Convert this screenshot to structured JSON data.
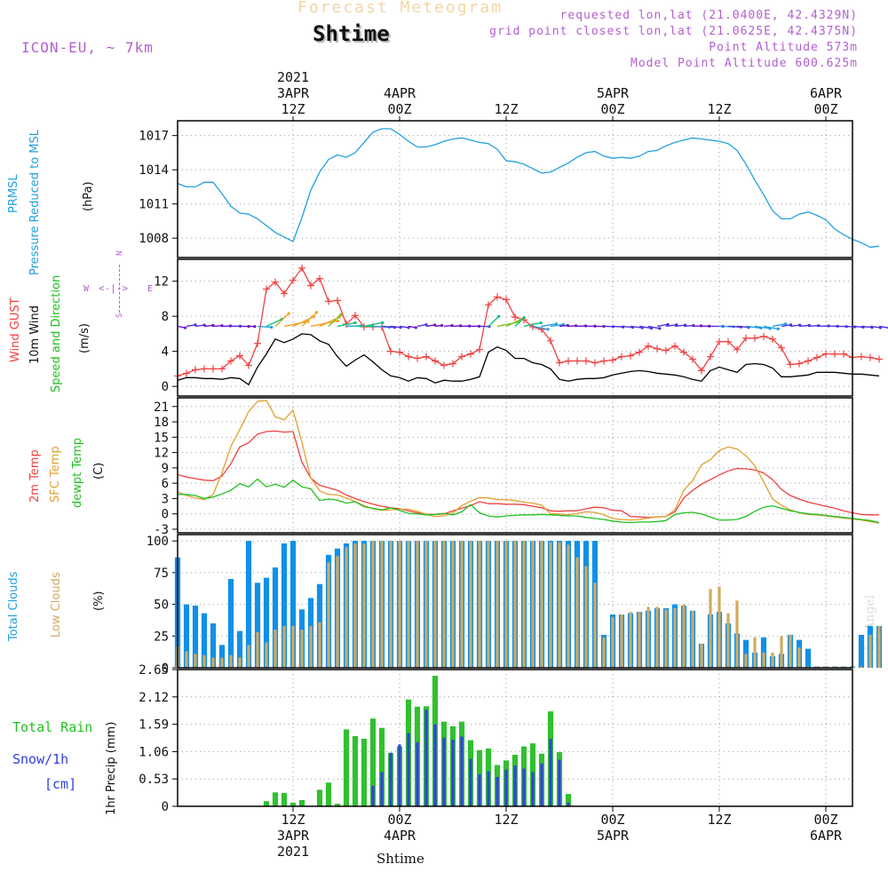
{
  "header": {
    "title": "Forecast Meteogram",
    "place": "Shtime",
    "model": "ICON-EU, ~ 7km",
    "requested": "requested lon,lat (21.0400E, 42.4329N)",
    "gridpoint": "grid point closest lon,lat (21.0625E, 42.4375N)",
    "point_alt": "Point Altitude 573m",
    "model_alt": "Model Point Altitude 600.625m"
  },
  "time_axis": {
    "top_ticks": [
      {
        "x": 13,
        "lines": [
          "2021",
          "3APR",
          "12Z"
        ]
      },
      {
        "x": 25,
        "lines": [
          "4APR",
          "00Z"
        ]
      },
      {
        "x": 37,
        "lines": [
          "12Z"
        ]
      },
      {
        "x": 49,
        "lines": [
          "5APR",
          "00Z"
        ]
      },
      {
        "x": 61,
        "lines": [
          "12Z"
        ]
      },
      {
        "x": 73,
        "lines": [
          "6APR",
          "00Z"
        ]
      }
    ],
    "bottom_ticks": [
      {
        "x": 13,
        "lines": [
          "12Z",
          "3APR",
          "2021"
        ]
      },
      {
        "x": 25,
        "lines": [
          "00Z",
          "4APR"
        ]
      },
      {
        "x": 37,
        "lines": [
          "12Z"
        ]
      },
      {
        "x": 49,
        "lines": [
          "00Z",
          "5APR"
        ]
      },
      {
        "x": 61,
        "lines": [
          "12Z"
        ]
      },
      {
        "x": 73,
        "lines": [
          "00Z",
          "6APR"
        ]
      }
    ],
    "xlabel": "Shtime"
  },
  "labels": {
    "prmsl": "PRMSL",
    "prmsl_sub": "Pressure Reduced to MSL",
    "hpa": "(hPa)",
    "gust": "Wind GUST",
    "wind10": "10m Wind",
    "speeddir": "Speed and Direction",
    "ms": "(m/s)",
    "t2m": "2m Temp",
    "sfc": "SFC Temp",
    "dew": "dewpt Temp",
    "c": "(C)",
    "totcl": "Total Clouds",
    "lowcl": "Low Clouds",
    "pct": "(%)",
    "rain": "Total  Rain",
    "snow": "Snow/1h",
    "cm": "[cm]",
    "precip": "1hr Precip (mm)",
    "compass_n": "N",
    "compass_s": "S",
    "compass_w": "W",
    "compass_e": "E",
    "by": "by Angel"
  },
  "colors": {
    "pressure": "#1fa0e0",
    "gust": "#f04040",
    "wind": "#000000",
    "t2m": "#f04040",
    "sfc": "#e0a030",
    "dew": "#20c020",
    "total_cloud": "#1090e8",
    "low_cloud": "#d0aa60",
    "rain": "#30c030",
    "snow": "#3040e0",
    "label_purple": "#b35fd0"
  },
  "chart_data": [
    {
      "type": "line",
      "title": "PRMSL",
      "ylabel": "(hPa)",
      "ylim": [
        1006.3,
        1018.3
      ],
      "yticks": [
        1008,
        1011,
        1014,
        1017
      ],
      "x_range": [
        0,
        76
      ],
      "series": [
        {
          "name": "PRMSL",
          "values": [
            1012.8,
            1012.5,
            1012.5,
            1012.9,
            1012.9,
            1011.9,
            1010.8,
            1010.2,
            1010.1,
            1009.7,
            1009.1,
            1008.5,
            1008.1,
            1007.7,
            1009.8,
            1012.2,
            1013.8,
            1014.9,
            1015.3,
            1015.1,
            1015.5,
            1016.4,
            1017.3,
            1017.6,
            1017.6,
            1017.1,
            1016.5,
            1016.0,
            1016.0,
            1016.2,
            1016.5,
            1016.7,
            1016.8,
            1016.6,
            1016.4,
            1016.3,
            1015.8,
            1014.8,
            1014.7,
            1014.5,
            1014.1,
            1013.7,
            1013.8,
            1014.2,
            1014.6,
            1015.1,
            1015.5,
            1015.6,
            1015.2,
            1015.0,
            1015.1,
            1015.0,
            1015.2,
            1015.6,
            1015.7,
            1016.1,
            1016.4,
            1016.6,
            1016.8,
            1016.7,
            1016.6,
            1016.5,
            1016.3,
            1015.7,
            1014.5,
            1013.1,
            1011.8,
            1010.4,
            1009.7,
            1009.7,
            1010.1,
            1010.3,
            1010.0,
            1009.6,
            1008.8,
            1008.3,
            1007.9,
            1007.6,
            1007.2,
            1007.3
          ]
        }
      ]
    },
    {
      "type": "line",
      "title": "Wind",
      "ylabel": "(m/s)",
      "ylim": [
        -1.1,
        14.5
      ],
      "yticks": [
        0,
        4,
        8,
        12
      ],
      "x_range": [
        0,
        76
      ],
      "series": [
        {
          "name": "Wind GUST",
          "values": [
            1.2,
            1.5,
            1.9,
            2.0,
            2.0,
            2.0,
            2.9,
            3.5,
            2.4,
            4.9,
            11.1,
            11.9,
            10.6,
            12.1,
            13.5,
            11.5,
            12.3,
            9.7,
            9.8,
            7.1,
            8.1,
            6.8,
            6.8,
            6.8,
            4.0,
            3.9,
            3.4,
            3.2,
            3.4,
            2.9,
            2.4,
            2.6,
            3.4,
            3.7,
            4.2,
            9.3,
            10.2,
            9.9,
            7.9,
            7.6,
            6.8,
            6.5,
            5.2,
            2.7,
            2.9,
            2.9,
            2.9,
            2.7,
            2.9,
            3.0,
            3.4,
            3.5,
            3.9,
            4.6,
            4.3,
            4.1,
            4.6,
            3.9,
            3.1,
            1.8,
            3.4,
            5.1,
            5.1,
            4.2,
            5.5,
            5.5,
            5.7,
            5.4,
            4.4,
            2.5,
            2.6,
            2.9,
            3.3,
            3.7,
            3.7,
            3.7,
            3.3,
            3.4,
            3.3,
            3.1
          ]
        },
        {
          "name": "10m Wind",
          "values": [
            0.7,
            1.0,
            1.0,
            0.9,
            0.9,
            0.8,
            1.0,
            0.9,
            0.2,
            2.2,
            3.7,
            5.4,
            5.0,
            5.4,
            6.0,
            5.9,
            5.2,
            4.8,
            3.4,
            2.3,
            3.0,
            3.6,
            2.8,
            1.9,
            1.2,
            1.0,
            0.6,
            1.0,
            0.9,
            0.4,
            0.7,
            0.6,
            0.6,
            0.8,
            1.1,
            3.9,
            4.5,
            4.1,
            3.2,
            3.2,
            2.7,
            2.5,
            2.0,
            0.8,
            0.6,
            0.8,
            0.9,
            0.9,
            1.0,
            1.3,
            1.5,
            1.7,
            1.8,
            1.7,
            1.5,
            1.4,
            1.3,
            1.1,
            0.8,
            0.6,
            1.8,
            2.2,
            1.9,
            1.6,
            2.5,
            2.6,
            2.5,
            2.1,
            1.1,
            1.1,
            1.2,
            1.3,
            1.6,
            1.6,
            1.6,
            1.5,
            1.4,
            1.4,
            1.3,
            1.2
          ]
        }
      ]
    },
    {
      "type": "line",
      "title": "Temperature",
      "ylabel": "(C)",
      "ylim": [
        -3.7,
        22.7
      ],
      "yticks": [
        -3,
        0,
        3,
        6,
        9,
        12,
        15,
        18,
        21
      ],
      "x_range": [
        0,
        76
      ],
      "series": [
        {
          "name": "2m Temp",
          "values": [
            7.7,
            7.2,
            6.9,
            6.6,
            6.5,
            7.4,
            9.8,
            13.1,
            13.9,
            15.6,
            16.1,
            16.2,
            16.0,
            16.1,
            10.1,
            7.0,
            5.6,
            5.1,
            4.6,
            3.7,
            3.0,
            2.4,
            1.9,
            1.5,
            1.2,
            1.0,
            0.6,
            0.2,
            -0.1,
            -0.1,
            0.0,
            0.6,
            1.1,
            1.6,
            2.4,
            2.0,
            2.0,
            1.9,
            1.9,
            1.8,
            1.5,
            1.2,
            0.6,
            0.5,
            0.6,
            0.6,
            1.0,
            1.3,
            1.2,
            0.7,
            0.6,
            -0.5,
            -0.6,
            -0.7,
            -0.6,
            -0.5,
            0.4,
            3.1,
            4.6,
            5.8,
            6.7,
            7.6,
            8.4,
            8.9,
            8.8,
            8.6,
            8.0,
            6.7,
            4.8,
            3.6,
            2.9,
            2.3,
            1.9,
            1.5,
            1.1,
            0.6,
            0.2,
            -0.1,
            -0.2,
            -0.2
          ]
        },
        {
          "name": "SFC Temp",
          "values": [
            4.3,
            3.6,
            3.1,
            2.8,
            3.8,
            8.0,
            13.2,
            16.5,
            20.0,
            22.0,
            22.2,
            19.0,
            18.4,
            20.3,
            14.0,
            7.0,
            4.5,
            3.8,
            3.7,
            3.1,
            2.4,
            1.6,
            1.0,
            0.7,
            0.8,
            0.9,
            0.9,
            0.5,
            -0.1,
            -0.5,
            -0.4,
            0.2,
            1.6,
            2.5,
            3.2,
            3.1,
            2.8,
            2.8,
            2.6,
            2.3,
            2.1,
            1.7,
            0.0,
            0.0,
            -0.2,
            0.1,
            0.4,
            0.3,
            -0.2,
            -0.9,
            -1.1,
            -1.2,
            -1.1,
            -0.8,
            -0.6,
            -0.5,
            0.8,
            4.6,
            6.5,
            9.6,
            10.6,
            12.4,
            13.1,
            12.7,
            11.4,
            9.4,
            6.3,
            2.9,
            1.7,
            0.8,
            0.2,
            -0.1,
            -0.2,
            -0.4,
            -0.6,
            -0.8,
            -1.0,
            -1.2,
            -1.5,
            -1.8
          ]
        },
        {
          "name": "dewpt Temp",
          "values": [
            3.8,
            3.8,
            3.6,
            3.0,
            3.3,
            3.9,
            4.6,
            5.9,
            5.3,
            6.8,
            5.3,
            5.8,
            5.2,
            6.6,
            5.3,
            4.9,
            2.6,
            2.9,
            2.7,
            2.1,
            2.4,
            1.4,
            1.1,
            0.8,
            1.2,
            0.7,
            0.1,
            0.0,
            -0.2,
            -0.1,
            0.1,
            -0.2,
            0.4,
            1.8,
            0.2,
            -0.4,
            -0.6,
            -0.4,
            -0.3,
            -0.2,
            -0.2,
            -0.1,
            -0.2,
            -0.3,
            -0.4,
            -0.4,
            -0.7,
            -0.9,
            -1.1,
            -1.4,
            -1.6,
            -1.7,
            -1.6,
            -1.6,
            -1.5,
            -1.3,
            -0.1,
            0.2,
            0.3,
            0.0,
            -0.6,
            -1.2,
            -1.2,
            -1.1,
            -0.5,
            0.5,
            1.3,
            1.6,
            1.1,
            0.6,
            0.3,
            0.0,
            -0.1,
            -0.3,
            -0.5,
            -0.7,
            -0.9,
            -1.1,
            -1.3,
            -1.7
          ]
        }
      ]
    },
    {
      "type": "bar",
      "title": "Clouds",
      "ylabel": "(%)",
      "ylim": [
        0,
        105
      ],
      "yticks": [
        0,
        25,
        50,
        75,
        100
      ],
      "x_range": [
        0,
        76
      ],
      "series": [
        {
          "name": "Total Clouds",
          "values": [
            87,
            50,
            49,
            43,
            35,
            18,
            70,
            29,
            100,
            67,
            71,
            79,
            98,
            100,
            46,
            55,
            66,
            89,
            94,
            98,
            100,
            100,
            100,
            100,
            100,
            100,
            100,
            100,
            100,
            100,
            100,
            100,
            100,
            100,
            100,
            100,
            100,
            100,
            100,
            100,
            100,
            100,
            100,
            100,
            100,
            100,
            100,
            100,
            26,
            42,
            42,
            43,
            44,
            45,
            47,
            47,
            50,
            49,
            45,
            19,
            42,
            44,
            35,
            27,
            22,
            12,
            24,
            9,
            11,
            26,
            22,
            15,
            1,
            1,
            1,
            1,
            1,
            26,
            33,
            33
          ]
        },
        {
          "name": "Low Clouds",
          "values": [
            17,
            13,
            11,
            10,
            8,
            8,
            10,
            8,
            18,
            28,
            20,
            30,
            33,
            33,
            30,
            33,
            36,
            83,
            88,
            95,
            98,
            98,
            100,
            100,
            100,
            100,
            100,
            100,
            100,
            100,
            100,
            100,
            100,
            100,
            100,
            100,
            100,
            100,
            100,
            100,
            100,
            100,
            99,
            99,
            97,
            87,
            80,
            67,
            24,
            40,
            42,
            44,
            44,
            48,
            48,
            46,
            47,
            50,
            45,
            19,
            62,
            64,
            43,
            53,
            11,
            24,
            12,
            12,
            25,
            26,
            16,
            1,
            1,
            1,
            1,
            1,
            1,
            1,
            26,
            33
          ]
        }
      ]
    },
    {
      "type": "bar",
      "title": "Precipitation",
      "ylabel": "1hr Precip (mm)",
      "ylim": [
        0,
        2.65
      ],
      "yticks": [
        0,
        0.53,
        1.06,
        1.59,
        2.12,
        2.65
      ],
      "x_range": [
        0,
        76
      ],
      "series": [
        {
          "name": "Total Rain",
          "values": [
            0,
            0,
            0,
            0,
            0,
            0,
            0,
            0,
            0,
            0,
            0.1,
            0.27,
            0.26,
            0.07,
            0.12,
            0.0,
            0.32,
            0.46,
            0.05,
            1.49,
            1.36,
            1.31,
            1.7,
            1.52,
            1.03,
            1.16,
            2.07,
            1.93,
            1.94,
            2.53,
            1.64,
            1.55,
            1.64,
            1.28,
            1.09,
            1.12,
            0.8,
            0.89,
            1.0,
            1.16,
            1.22,
            1.02,
            1.84,
            1.05,
            0.24,
            0,
            0,
            0,
            0,
            0,
            0,
            0,
            0,
            0,
            0,
            0,
            0,
            0,
            0,
            0,
            0,
            0,
            0,
            0,
            0,
            0,
            0,
            0,
            0,
            0,
            0,
            0,
            0,
            0,
            0,
            0,
            0,
            0,
            0,
            0
          ]
        },
        {
          "name": "Snow/1h",
          "values": [
            0,
            0,
            0,
            0,
            0,
            0,
            0,
            0,
            0,
            0,
            0,
            0,
            0,
            0,
            0,
            0,
            0,
            0,
            0,
            0,
            0,
            0.01,
            0.4,
            0.66,
            1.04,
            1.2,
            1.42,
            1.24,
            1.87,
            1.59,
            1.33,
            1.29,
            1.35,
            0.92,
            0.62,
            0.68,
            0.57,
            0.71,
            0.79,
            0.73,
            0.66,
            0.83,
            1.31,
            0.9,
            0.07,
            0,
            0,
            0,
            0,
            0,
            0,
            0,
            0,
            0,
            0,
            0,
            0,
            0,
            0,
            0,
            0,
            0,
            0,
            0,
            0,
            0,
            0,
            0,
            0,
            0,
            0,
            0,
            0,
            0,
            0,
            0,
            0,
            0,
            0,
            0
          ]
        }
      ]
    }
  ]
}
